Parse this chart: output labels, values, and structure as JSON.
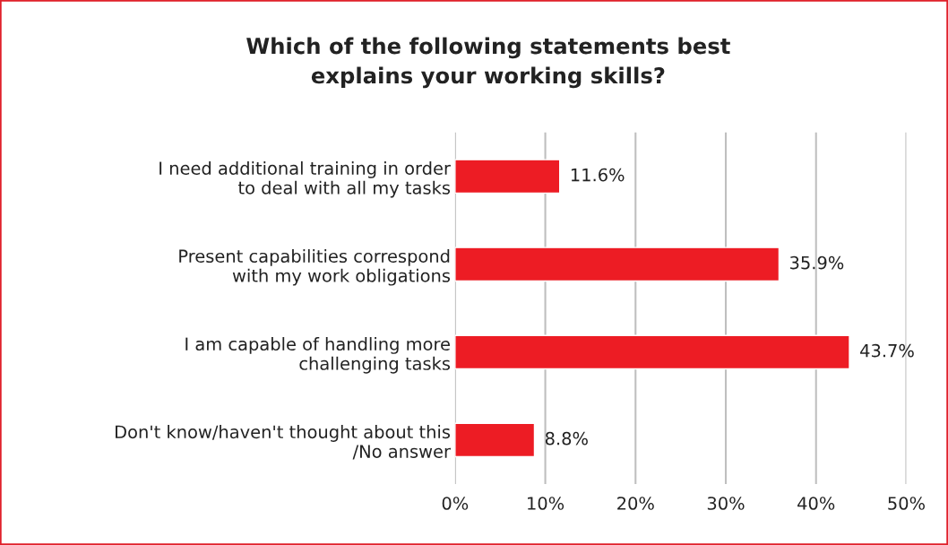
{
  "chart_data": {
    "type": "bar",
    "orientation": "horizontal",
    "title": "Which of the following statements best\nexplains your working skills?",
    "categories": [
      "I need additional training in order\nto deal with all my tasks",
      "Present capabilities correspond\nwith my work obligations",
      "I am capable of handling more\nchallenging tasks",
      "Don't know/haven't thought about this\n/No answer"
    ],
    "values": [
      11.6,
      35.9,
      43.7,
      8.8
    ],
    "value_labels": [
      "11.6%",
      "35.9%",
      "43.7%",
      "8.8%"
    ],
    "color": "#ed1c24",
    "xlim": [
      0,
      50
    ],
    "xticks": [
      {
        "value": 0,
        "label": "0%"
      },
      {
        "value": 10,
        "label": "10%"
      },
      {
        "value": 20,
        "label": "20%"
      },
      {
        "value": 30,
        "label": "30%"
      },
      {
        "value": 40,
        "label": "40%"
      },
      {
        "value": 50,
        "label": "50%"
      }
    ],
    "grid": "x",
    "legend": false
  }
}
